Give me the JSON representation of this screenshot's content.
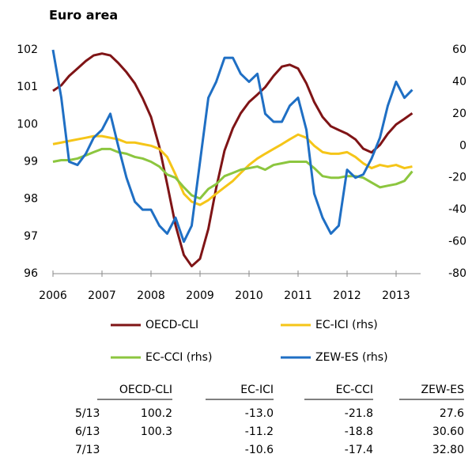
{
  "chart_data": {
    "type": "line",
    "title": "Euro area",
    "x": [
      2006.0,
      2006.17,
      2006.33,
      2006.5,
      2006.67,
      2006.83,
      2007.0,
      2007.17,
      2007.33,
      2007.5,
      2007.67,
      2007.83,
      2008.0,
      2008.17,
      2008.33,
      2008.5,
      2008.67,
      2008.83,
      2009.0,
      2009.17,
      2009.33,
      2009.5,
      2009.67,
      2009.83,
      2010.0,
      2010.17,
      2010.33,
      2010.5,
      2010.67,
      2010.83,
      2011.0,
      2011.17,
      2011.33,
      2011.5,
      2011.67,
      2011.83,
      2012.0,
      2012.17,
      2012.33,
      2012.5,
      2012.67,
      2012.83,
      2013.0,
      2013.17,
      2013.33
    ],
    "xlim": [
      2006,
      2013.5
    ],
    "xticks": [
      2006,
      2007,
      2008,
      2009,
      2010,
      2011,
      2012,
      2013
    ],
    "ylim": [
      96,
      102
    ],
    "yticks": [
      96,
      97,
      98,
      99,
      100,
      101,
      102
    ],
    "y2lim": [
      -80,
      60
    ],
    "y2ticks": [
      -80,
      -60,
      -40,
      -20,
      0,
      20,
      40,
      60
    ],
    "series": [
      {
        "name": "OECD-CLI",
        "color": "#7f1416",
        "values": [
          100.9,
          101.05,
          101.3,
          101.5,
          101.7,
          101.85,
          101.9,
          101.85,
          101.65,
          101.4,
          101.1,
          100.7,
          100.2,
          99.4,
          98.4,
          97.3,
          96.5,
          96.2,
          96.4,
          97.2,
          98.3,
          99.3,
          99.9,
          100.3,
          100.6,
          100.8,
          101.0,
          101.3,
          101.55,
          101.6,
          101.5,
          101.1,
          100.6,
          100.2,
          99.95,
          99.85,
          99.75,
          99.6,
          99.35,
          99.25,
          99.45,
          99.75,
          100.0,
          100.15,
          100.3
        ]
      },
      {
        "name": "EC-ICI (rhs)",
        "color": "#f5c518",
        "axis": "y2",
        "values": [
          1,
          2,
          3,
          4,
          5,
          6,
          6,
          5,
          4,
          2,
          2,
          1,
          0,
          -2,
          -7,
          -18,
          -30,
          -35,
          -37,
          -34,
          -30,
          -26,
          -22,
          -17,
          -12,
          -8,
          -5,
          -2,
          1,
          4,
          7,
          5,
          0,
          -4,
          -5,
          -5,
          -4,
          -7,
          -11,
          -14,
          -12,
          -13,
          -12,
          -14,
          -13
        ]
      },
      {
        "name": "EC-CCI (rhs)",
        "color": "#8cc63f",
        "axis": "y2",
        "values": [
          -10,
          -9,
          -9,
          -8,
          -6,
          -4,
          -2,
          -2,
          -4,
          -5,
          -7,
          -8,
          -10,
          -13,
          -18,
          -20,
          -26,
          -31,
          -33,
          -27,
          -24,
          -19,
          -17,
          -15,
          -14,
          -13,
          -15,
          -12,
          -11,
          -10,
          -10,
          -10,
          -14,
          -19,
          -20,
          -20,
          -19,
          -19,
          -20,
          -23,
          -26,
          -25,
          -24,
          -22,
          -16
        ]
      },
      {
        "name": "ZEW-ES (rhs)",
        "color": "#1f6fc4",
        "axis": "y2",
        "values": [
          60,
          30,
          -10,
          -12,
          -5,
          5,
          10,
          20,
          0,
          -20,
          -35,
          -40,
          -40,
          -50,
          -55,
          -45,
          -60,
          -50,
          -10,
          30,
          40,
          55,
          55,
          45,
          40,
          45,
          20,
          15,
          15,
          25,
          30,
          10,
          -30,
          -45,
          -55,
          -50,
          -15,
          -20,
          -18,
          -8,
          5,
          25,
          40,
          30,
          35
        ]
      }
    ]
  },
  "table": {
    "header": [
      "OECD-CLI",
      "EC-ICI",
      "EC-CCI",
      "ZEW-ES"
    ],
    "rows": [
      [
        "5/13",
        "100.2",
        "-13.0",
        "-21.8",
        "27.6"
      ],
      [
        "6/13",
        "100.3",
        "-11.2",
        "-18.8",
        "30.60"
      ],
      [
        "7/13",
        null,
        "-10.6",
        "-17.4",
        "32.80"
      ]
    ]
  }
}
